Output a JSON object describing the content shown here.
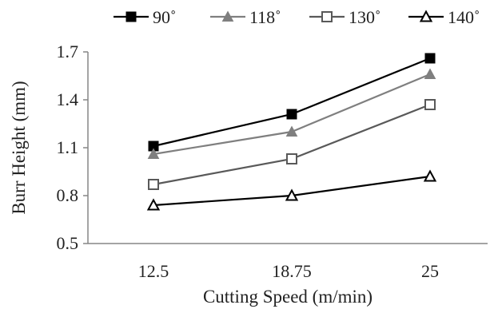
{
  "chart_data": {
    "type": "line",
    "title": "",
    "xlabel": "Cutting Speed (m/min)",
    "ylabel": "Burr Height (mm)",
    "categories": [
      "12.5",
      "18.75",
      "25"
    ],
    "ylim": [
      0.5,
      1.7
    ],
    "yticks": [
      "0.5",
      "0.8",
      "1.1",
      "1.4",
      "1.7"
    ],
    "grid": false,
    "legend_position": "top",
    "series": [
      {
        "name": "90˚",
        "values": [
          1.11,
          1.31,
          1.66
        ],
        "color": "#000000",
        "marker": "filled-square"
      },
      {
        "name": "118˚",
        "values": [
          1.06,
          1.2,
          1.56
        ],
        "color": "#7f7f7f",
        "marker": "filled-triangle"
      },
      {
        "name": "130˚",
        "values": [
          0.87,
          1.03,
          1.37
        ],
        "color": "#595959",
        "marker": "open-square"
      },
      {
        "name": "140˚",
        "values": [
          0.74,
          0.8,
          0.92
        ],
        "color": "#000000",
        "marker": "open-triangle"
      }
    ]
  }
}
